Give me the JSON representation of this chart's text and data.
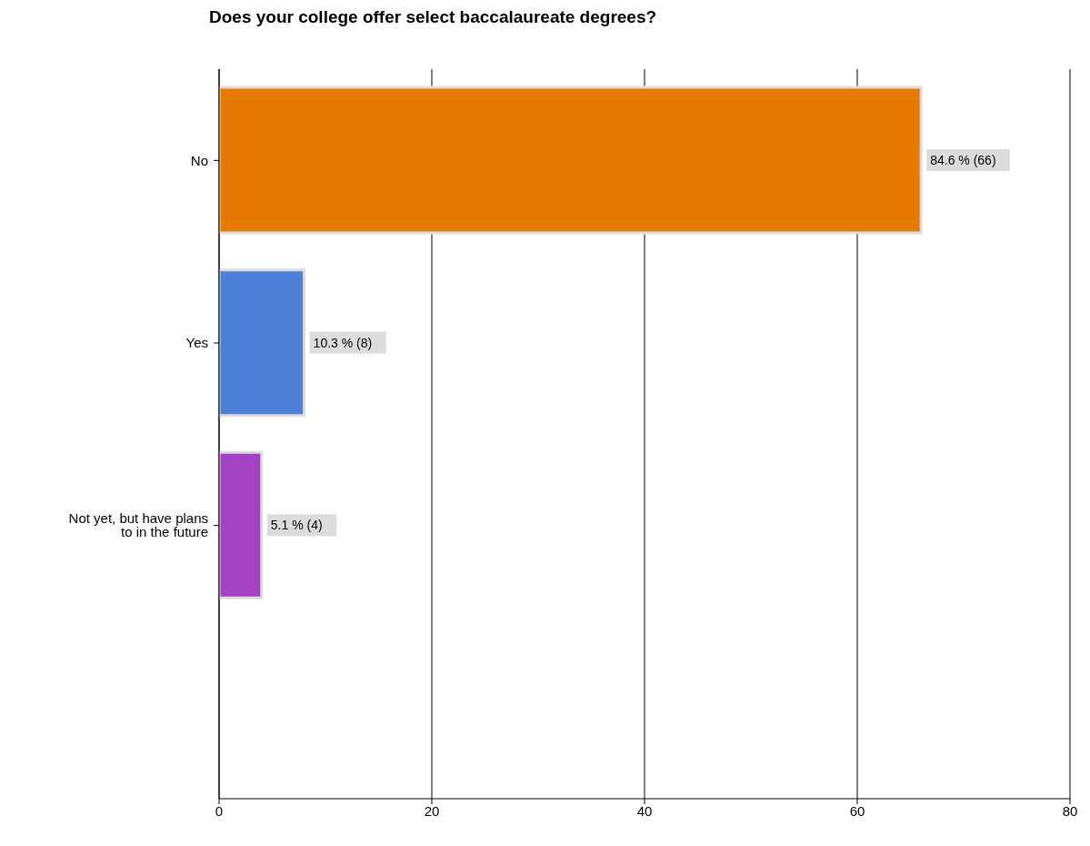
{
  "chart_data": {
    "type": "bar",
    "orientation": "horizontal",
    "title": "Does your college offer select baccalaureate degrees?",
    "categories": [
      "No",
      "Yes",
      "Not yet, but have plans to in the future"
    ],
    "values": [
      66,
      8,
      4
    ],
    "colors": [
      "#e57a00",
      "#4f80d8",
      "#a444c4"
    ],
    "value_labels": [
      "84.6 % (66)",
      "10.3 % (8)",
      "5.1 % (4)"
    ],
    "xlim": [
      0,
      80
    ],
    "xticks": [
      0,
      20,
      40,
      60,
      80
    ],
    "grid": "x"
  }
}
